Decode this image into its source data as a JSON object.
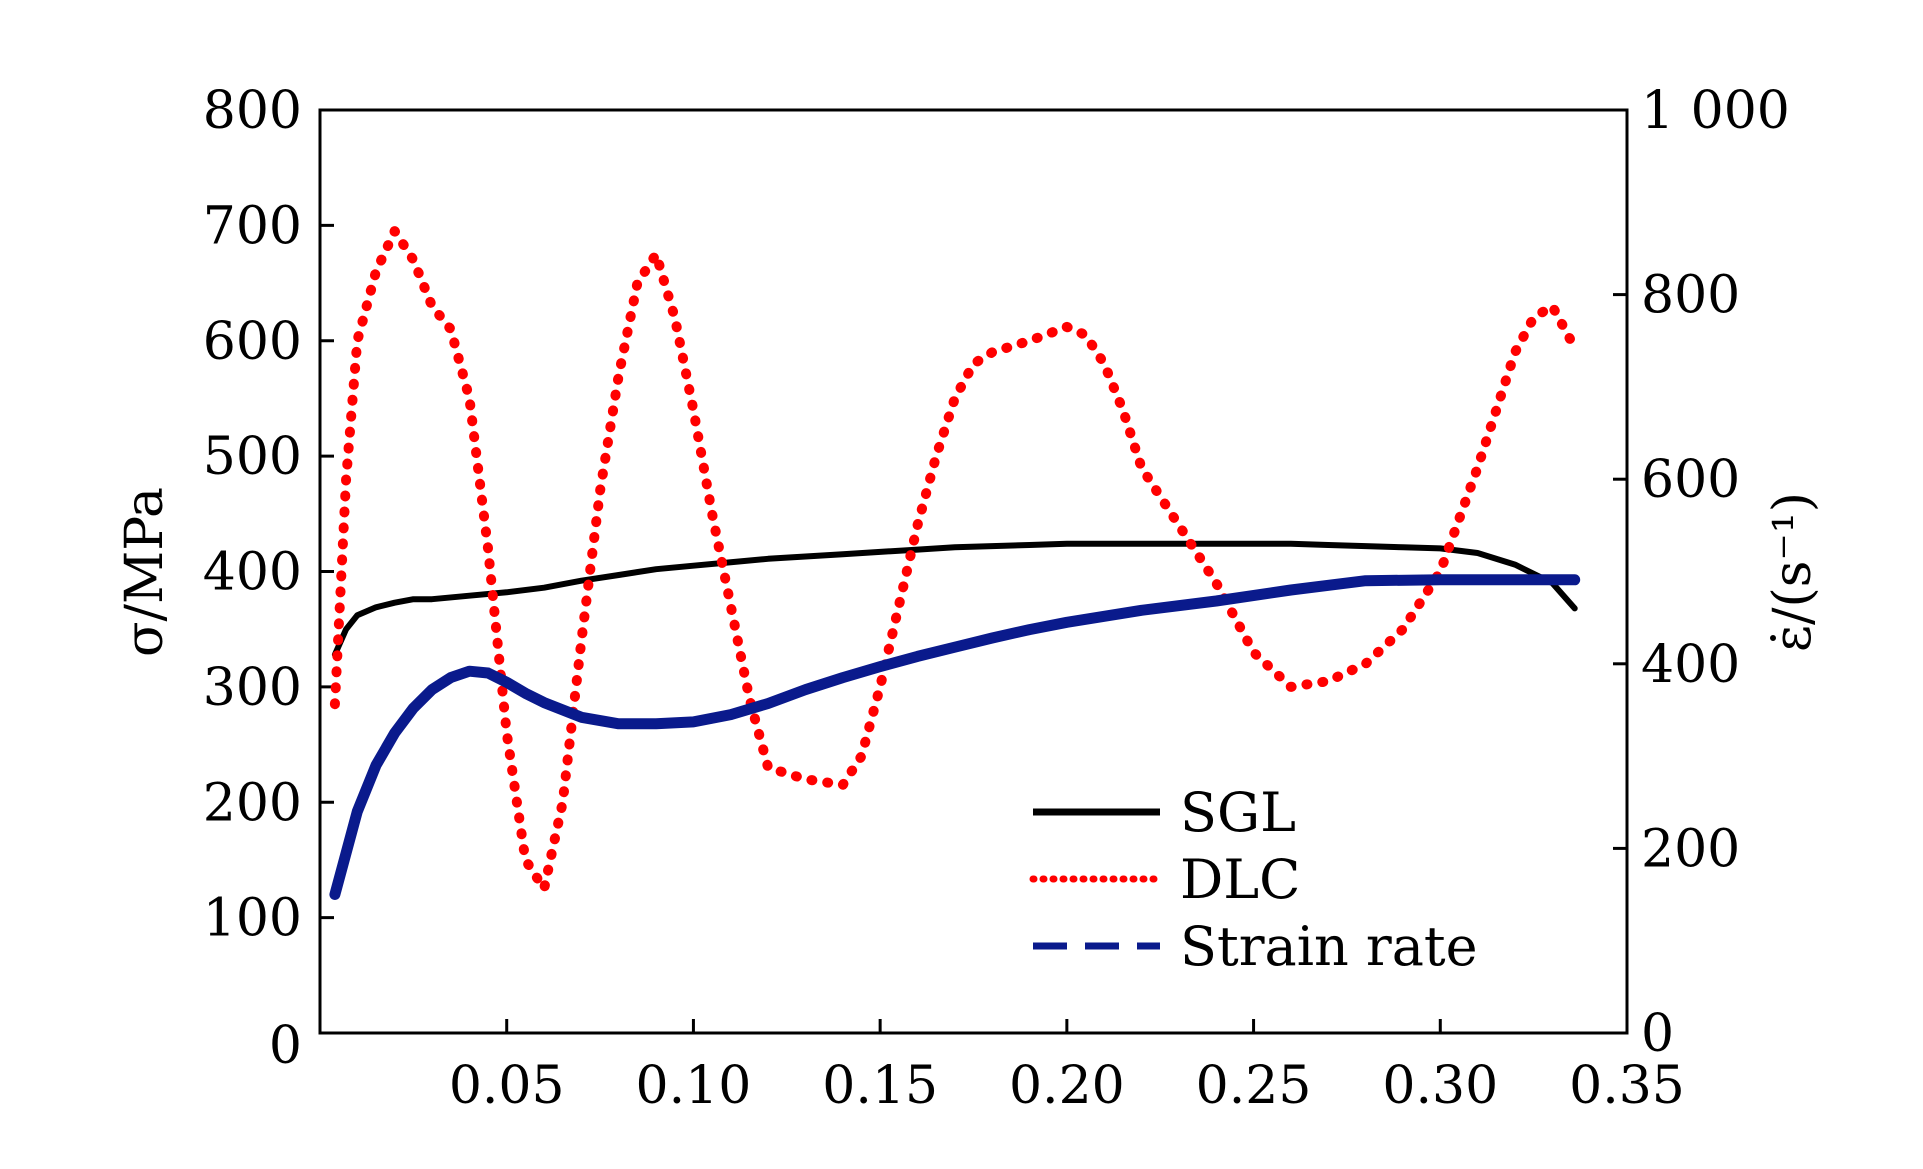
{
  "chart_data": {
    "type": "line",
    "xlabel": "",
    "ylabel_left": "σ/MPa",
    "ylabel_right": "ε̇/(s⁻¹)",
    "xlim": [
      0.0,
      0.35
    ],
    "ylim_left": [
      0,
      800
    ],
    "ylim_right": [
      0,
      1000
    ],
    "x_ticks": [
      0.05,
      0.1,
      0.15,
      0.2,
      0.25,
      0.3,
      0.35
    ],
    "x_tick_labels": [
      "0.05",
      "0.10",
      "0.15",
      "0.20",
      "0.25",
      "0.30",
      "0.35"
    ],
    "y_left_ticks": [
      0,
      100,
      200,
      300,
      400,
      500,
      600,
      700,
      800
    ],
    "y_left_tick_labels": [
      "0",
      "100",
      "200",
      "300",
      "400",
      "500",
      "600",
      "700",
      "800"
    ],
    "y_right_ticks": [
      0,
      200,
      400,
      600,
      800,
      1000
    ],
    "y_right_tick_labels": [
      "0",
      "200",
      "400",
      "600",
      "800",
      "1 000"
    ],
    "grid": false,
    "legend_position": "lower-right",
    "series": [
      {
        "name": "SGL",
        "axis": "left",
        "style": "solid",
        "color": "#000000",
        "x": [
          0.004,
          0.007,
          0.01,
          0.015,
          0.02,
          0.025,
          0.03,
          0.04,
          0.05,
          0.06,
          0.07,
          0.08,
          0.09,
          0.1,
          0.11,
          0.12,
          0.13,
          0.14,
          0.15,
          0.16,
          0.17,
          0.18,
          0.19,
          0.2,
          0.22,
          0.24,
          0.26,
          0.27,
          0.28,
          0.29,
          0.3,
          0.31,
          0.32,
          0.33,
          0.336
        ],
        "y": [
          328,
          350,
          362,
          369,
          373,
          376,
          376,
          379,
          382,
          386,
          392,
          397,
          402,
          405,
          408,
          411,
          413,
          415,
          417,
          419,
          421,
          422,
          423,
          424,
          424,
          424,
          424,
          423,
          422,
          421,
          420,
          416,
          406,
          390,
          368
        ]
      },
      {
        "name": "DLC",
        "axis": "left",
        "style": "dotted",
        "color": "#ff0000",
        "x": [
          0.004,
          0.007,
          0.01,
          0.015,
          0.02,
          0.025,
          0.03,
          0.035,
          0.04,
          0.045,
          0.05,
          0.055,
          0.06,
          0.065,
          0.07,
          0.075,
          0.08,
          0.085,
          0.09,
          0.095,
          0.1,
          0.105,
          0.11,
          0.115,
          0.12,
          0.13,
          0.14,
          0.145,
          0.15,
          0.155,
          0.16,
          0.165,
          0.17,
          0.175,
          0.18,
          0.19,
          0.2,
          0.205,
          0.21,
          0.215,
          0.22,
          0.23,
          0.24,
          0.25,
          0.26,
          0.27,
          0.28,
          0.29,
          0.3,
          0.31,
          0.315,
          0.32,
          0.325,
          0.33,
          0.335
        ],
        "y": [
          285,
          480,
          600,
          660,
          695,
          670,
          630,
          610,
          550,
          420,
          260,
          150,
          125,
          200,
          340,
          470,
          570,
          650,
          675,
          620,
          540,
          450,
          370,
          290,
          230,
          220,
          215,
          240,
          300,
          370,
          440,
          500,
          550,
          580,
          590,
          600,
          612,
          605,
          580,
          540,
          490,
          440,
          390,
          330,
          300,
          305,
          320,
          350,
          400,
          490,
          540,
          590,
          620,
          630,
          600
        ]
      },
      {
        "name": "Strain rate",
        "axis": "right",
        "style": "dashed",
        "color": "#0a1a8c",
        "x": [
          0.004,
          0.007,
          0.01,
          0.015,
          0.02,
          0.025,
          0.03,
          0.035,
          0.04,
          0.045,
          0.05,
          0.055,
          0.06,
          0.07,
          0.08,
          0.09,
          0.1,
          0.11,
          0.12,
          0.13,
          0.14,
          0.15,
          0.16,
          0.17,
          0.18,
          0.19,
          0.2,
          0.22,
          0.24,
          0.26,
          0.28,
          0.3,
          0.32,
          0.336
        ],
        "y": [
          150,
          195,
          240,
          290,
          325,
          352,
          372,
          385,
          392,
          390,
          380,
          368,
          358,
          342,
          335,
          335,
          337,
          345,
          357,
          372,
          385,
          397,
          408,
          418,
          428,
          437,
          445,
          458,
          468,
          480,
          490,
          491,
          491,
          491
        ]
      }
    ]
  }
}
